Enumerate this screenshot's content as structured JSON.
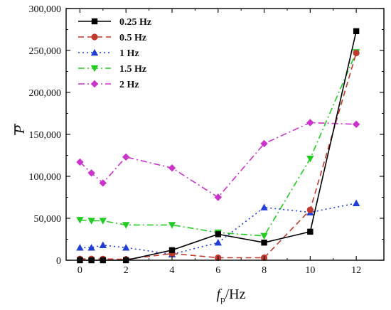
{
  "chart_data": {
    "type": "line",
    "xlabel_main": "f",
    "xlabel_sub": "p",
    "xlabel_unit": "/Hz",
    "ylabel": "P",
    "xlim": [
      -0.6,
      13.2
    ],
    "ylim": [
      0,
      300000
    ],
    "xticks": [
      0,
      2,
      4,
      6,
      8,
      10,
      12
    ],
    "yticks": [
      0,
      50000,
      100000,
      150000,
      200000,
      250000,
      300000
    ],
    "ytick_labels": [
      "0",
      "50,000",
      "100,000",
      "150,000",
      "200,000",
      "250,000",
      "300,000"
    ],
    "legend_position": "top-left",
    "grid": false,
    "series": [
      {
        "name": "0.25 Hz",
        "color": "#000000",
        "marker": "square",
        "dash": "solid",
        "x": [
          0,
          0.5,
          1,
          2,
          4,
          6,
          8,
          10,
          12
        ],
        "values": [
          0,
          0,
          0,
          0,
          12000,
          31000,
          21000,
          34000,
          273000
        ]
      },
      {
        "name": "0.5 Hz",
        "color": "#c0392b",
        "marker": "circle",
        "dash": "dash",
        "x": [
          0,
          0.5,
          1,
          2,
          4,
          6,
          8,
          10,
          12
        ],
        "values": [
          1500,
          1500,
          1500,
          1000,
          8000,
          3000,
          3000,
          60000,
          247000
        ]
      },
      {
        "name": "1 Hz",
        "color": "#1f3fd6",
        "marker": "triangle-up",
        "dash": "dot",
        "x": [
          0,
          0.5,
          1,
          2,
          4,
          6,
          8,
          10,
          12
        ],
        "values": [
          15000,
          15000,
          18000,
          15000,
          7000,
          21000,
          63000,
          57000,
          68000
        ]
      },
      {
        "name": "1.5 Hz",
        "color": "#22cc22",
        "marker": "triangle-down",
        "dash": "dashdot",
        "x": [
          0,
          0.5,
          1,
          2,
          4,
          6,
          8,
          10,
          12
        ],
        "values": [
          48000,
          47000,
          47000,
          42000,
          42000,
          33000,
          29000,
          121000,
          248000
        ]
      },
      {
        "name": "2 Hz",
        "color": "#cc33cc",
        "marker": "diamond",
        "dash": "dashdot",
        "x": [
          0,
          0.5,
          1,
          2,
          4,
          6,
          8,
          10,
          12
        ],
        "values": [
          117000,
          104000,
          92000,
          123000,
          110000,
          75000,
          139000,
          164000,
          162000
        ]
      }
    ]
  }
}
